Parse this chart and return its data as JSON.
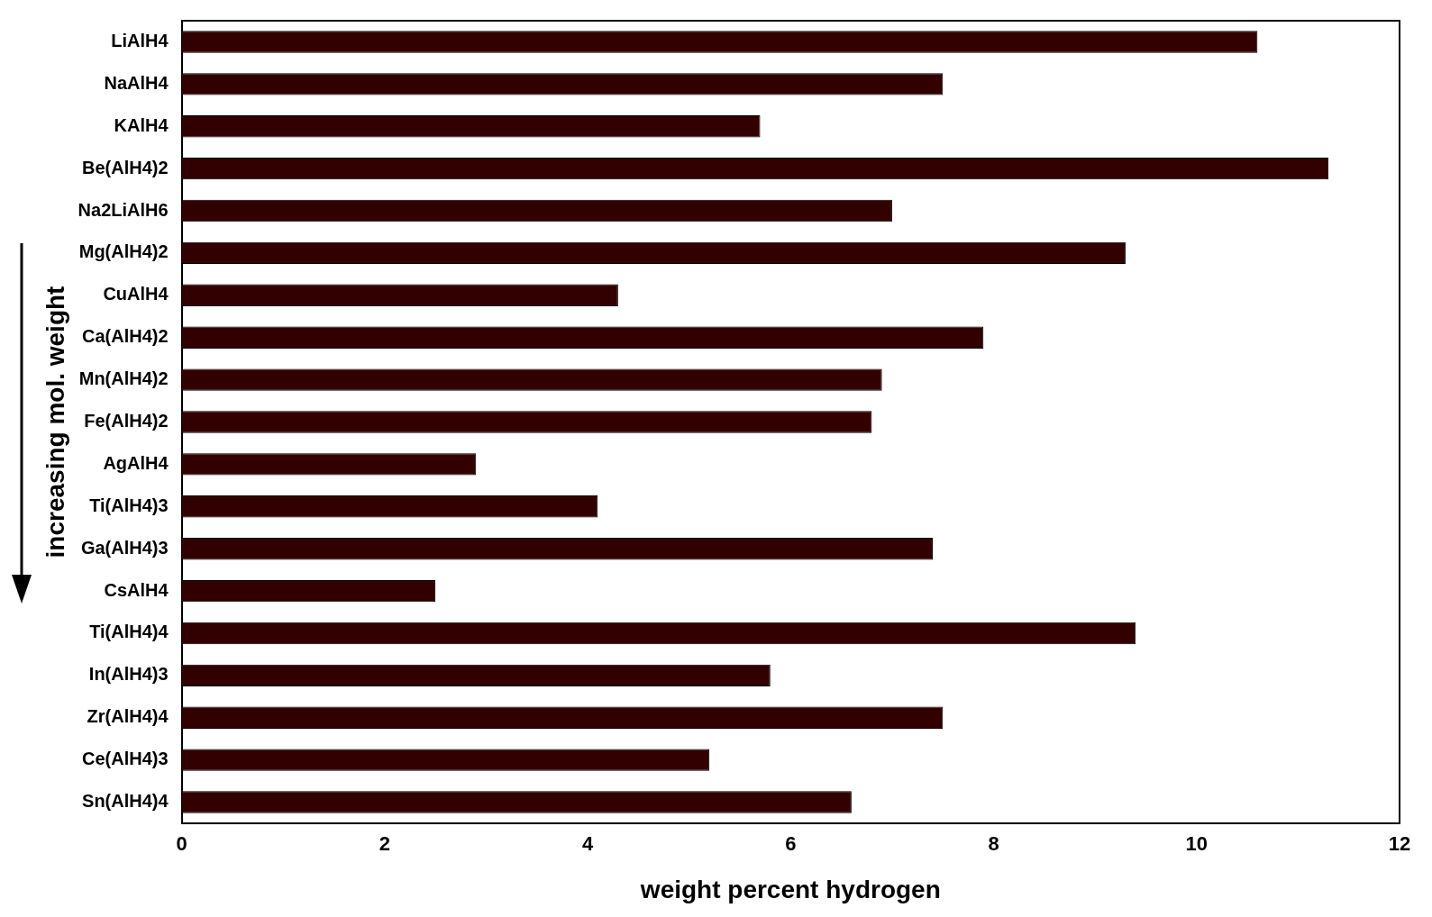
{
  "chart_data": {
    "type": "bar",
    "orientation": "horizontal",
    "xlabel": "weight percent hydrogen",
    "ylabel": "increasing mol. weight",
    "categories": [
      "LiAlH4",
      "NaAlH4",
      "KAlH4",
      "Be(AlH4)2",
      "Na2LiAlH6",
      "Mg(AlH4)2",
      "CuAlH4",
      "Ca(AlH4)2",
      "Mn(AlH4)2",
      "Fe(AlH4)2",
      "AgAlH4",
      "Ti(AlH4)3",
      "Ga(AlH4)3",
      "CsAlH4",
      "Ti(AlH4)4",
      "In(AlH4)3",
      "Zr(AlH4)4",
      "Ce(AlH4)3",
      "Sn(AlH4)4"
    ],
    "values": [
      10.6,
      7.5,
      5.7,
      11.3,
      7.0,
      9.3,
      4.3,
      7.9,
      6.9,
      6.8,
      2.9,
      4.1,
      7.4,
      2.5,
      9.4,
      5.8,
      7.5,
      5.2,
      6.6
    ],
    "color": "#330000",
    "xlim": [
      0,
      12
    ],
    "xticks": [
      0,
      2,
      4,
      6,
      8,
      10,
      12
    ],
    "grid": false,
    "legend": false
  }
}
